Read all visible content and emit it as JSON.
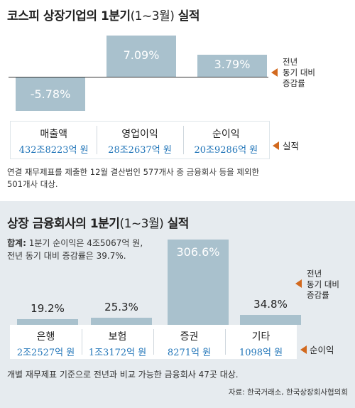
{
  "chart_data": [
    {
      "type": "bar",
      "title": "코스피 상장기업의 1분기",
      "title_paren": "(1~3월)",
      "title_suffix": "실적",
      "categories": [
        "매출액",
        "영업이익",
        "순이익"
      ],
      "values": [
        -5.78,
        7.09,
        3.79
      ],
      "value_labels": [
        "-5.78%",
        "7.09%",
        "3.79%"
      ],
      "amounts": [
        "432조8223억 원",
        "28조2637억 원",
        "20조9286억 원"
      ],
      "side_label_change": [
        "전년",
        "동기 대비",
        "증감률"
      ],
      "side_label_amount": "실적",
      "note_lines": [
        "연결 재무제표를 제출한 12월 결산법인 577개사 중 금융회사 등을 제외한",
        "501개사 대상."
      ],
      "bar_color": "#a9c1cd"
    },
    {
      "type": "bar",
      "title": "상장 금융회사의 1분기",
      "title_paren": "(1~3월)",
      "title_suffix": "실적",
      "categories": [
        "은행",
        "보험",
        "증권",
        "기타"
      ],
      "values": [
        19.2,
        25.3,
        306.6,
        34.8
      ],
      "value_labels": [
        "19.2%",
        "25.3%",
        "306.6%",
        "34.8%"
      ],
      "amounts": [
        "2조2527억 원",
        "1조3172억 원",
        "8271억 원",
        "1098억 원"
      ],
      "total_label": "합계:",
      "total_lines": [
        "1분기 순이익은 4조5067억 원,",
        "전년 동기 대비 증감률은 39.7%."
      ],
      "side_label_change": [
        "전년",
        "동기 대비",
        "증감률"
      ],
      "side_label_amount": "순이익",
      "note_lines": [
        "개별 재무제표 기준으로 전년과 비교 가능한 금융회사 47곳 대상."
      ],
      "source": "자료: 한국거래소, 한국상장회사협의회",
      "bar_color": "#a9c1cd"
    }
  ],
  "colors": {
    "accent_triangle": "#d2691e",
    "amount_text": "#1f74b8",
    "panel2_bg": "#e6ebef"
  }
}
